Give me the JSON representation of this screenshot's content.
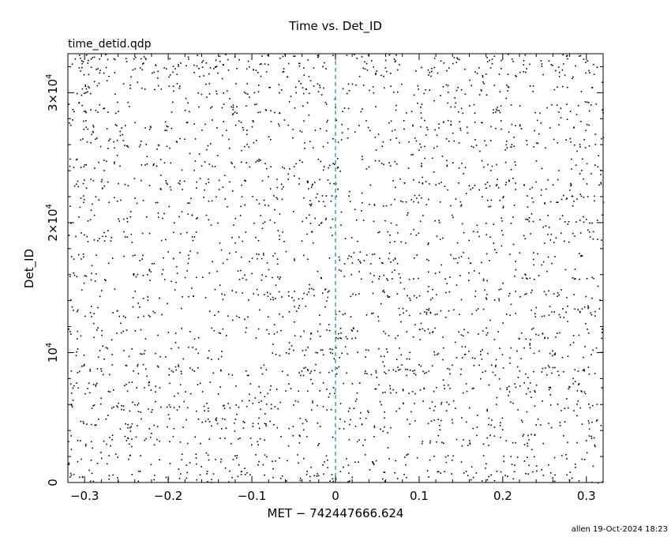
{
  "chart_data": {
    "type": "scatter",
    "title": "Time vs. Det_ID",
    "subtitle": "time_detid.qdp",
    "xlabel": "MET − 742447666.624",
    "ylabel": "Det_ID",
    "xlim": [
      -0.32,
      0.32
    ],
    "ylim": [
      0,
      33000
    ],
    "x_ticks": [
      -0.3,
      -0.2,
      -0.1,
      0,
      0.1,
      0.2,
      0.3
    ],
    "x_tick_labels": [
      "−0.3",
      "−0.2",
      "−0.1",
      "0",
      "0.1",
      "0.2",
      "0.3"
    ],
    "y_ticks": [
      {
        "value": 0,
        "base": "0",
        "exp": ""
      },
      {
        "value": 10000,
        "base": "10",
        "exp": "4"
      },
      {
        "value": 20000,
        "base": "2×10",
        "exp": "4"
      },
      {
        "value": 30000,
        "base": "3×10",
        "exp": "4"
      }
    ],
    "reference_line": {
      "x": 0,
      "style": "dashed",
      "color": "#2a8fa0"
    },
    "series": [
      {
        "marker": "dot",
        "color": "#000000",
        "x_range": [
          -0.32,
          0.32
        ],
        "y_range": [
          0,
          33000
        ],
        "band_centers": [
          500,
          1800,
          3300,
          4600,
          5900,
          7300,
          8700,
          10000,
          11500,
          13200,
          14500,
          16000,
          17300,
          18900,
          20300,
          21700,
          23000,
          24500,
          26200,
          27500,
          28900,
          30300,
          31700,
          32600
        ],
        "approx_count": 3000
      }
    ],
    "grid": false,
    "legend": "none"
  },
  "footer": "allen 19-Oct-2024 18:23"
}
